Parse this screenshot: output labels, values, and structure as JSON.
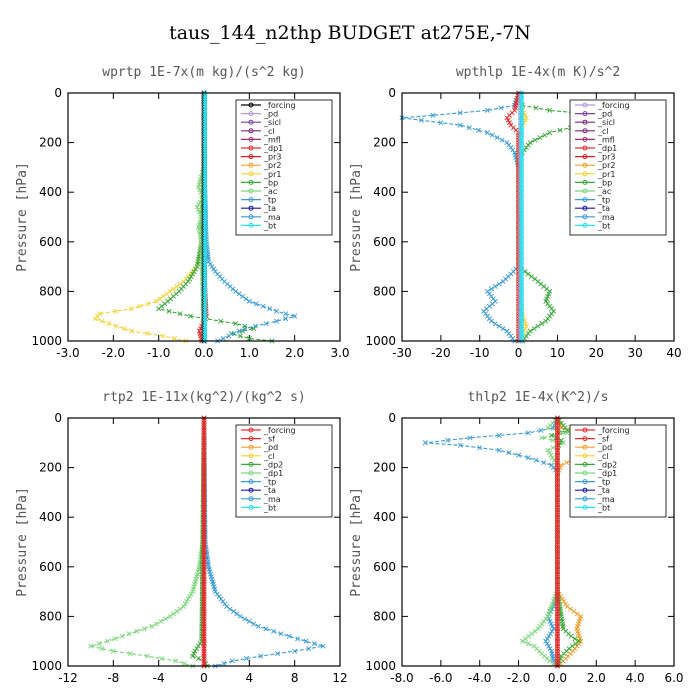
{
  "figure_title": "taus_144_n2thp  BUDGET at275E,-7N",
  "chart_data": [
    {
      "type": "line",
      "title": "wprtp  1E-7x(m kg)/(s^2 kg)",
      "ylabel": "Pressure [hPa]",
      "xlim": [
        -3.0,
        3.0
      ],
      "ylim": [
        0,
        1000
      ],
      "y_inverted": true,
      "xticks": [
        "-3.0",
        "-2.0",
        "-1.0",
        "0.0",
        "1.0",
        "2.0",
        "3.0"
      ],
      "yticks": [
        "0",
        "200",
        "400",
        "600",
        "800",
        "1000"
      ],
      "legend": [
        "_forcing",
        "_pd",
        "_sicl",
        "_cl",
        "_mfl",
        "_dp1",
        "_pr3",
        "_pr2",
        "_pr1",
        "_bp",
        "_ac",
        "_tp",
        "_ta",
        "_ma",
        "_bt"
      ],
      "legend_position": "top-right",
      "colors": {
        "_forcing": "#000000",
        "_pd": "#b59ad6",
        "_sicl": "#7b3fa0",
        "_cl": "#7a2a7a",
        "_mfl": "#a0306a",
        "_dp1": "#e03030",
        "_pr3": "#d02020",
        "_pr2": "#f0a030",
        "_pr1": "#f2d23a",
        "_bp": "#3aa83a",
        "_ac": "#7cd67c",
        "_tp": "#3a9bd6",
        "_ta": "#1a1aa0",
        "_ma": "#3a9bd6",
        "_bt": "#2ee0f0"
      },
      "series": [
        {
          "name": "_pr1",
          "y": [
            0,
            300,
            600,
            700,
            760,
            800,
            840,
            870,
            890,
            910,
            930,
            960,
            980,
            1000
          ],
          "x": [
            0,
            -0.01,
            -0.05,
            -0.15,
            -0.45,
            -0.75,
            -1.05,
            -1.6,
            -2.3,
            -2.4,
            -2.1,
            -1.6,
            -0.9,
            -0.4
          ]
        },
        {
          "name": "_bp",
          "y": [
            0,
            300,
            600,
            700,
            760,
            800,
            840,
            870,
            900,
            930,
            950,
            970,
            990,
            1000
          ],
          "x": [
            0,
            0.01,
            -0.05,
            -0.15,
            -0.35,
            -0.55,
            -0.8,
            -1.0,
            -0.3,
            0.7,
            1.1,
            0.6,
            1.0,
            1.5
          ]
        },
        {
          "name": "_tp",
          "y": [
            0,
            300,
            600,
            680,
            720,
            760,
            800,
            840,
            880,
            900,
            920,
            950,
            980,
            1000
          ],
          "x": [
            0,
            0.01,
            0.05,
            0.1,
            0.25,
            0.45,
            0.7,
            1.0,
            1.6,
            2.0,
            1.6,
            0.9,
            0.55,
            0.3
          ]
        },
        {
          "name": "_ac",
          "y": [
            0,
            300,
            380,
            420,
            460,
            500,
            540,
            600,
            1000
          ],
          "x": [
            0,
            0,
            -0.12,
            -0.02,
            -0.15,
            -0.05,
            -0.12,
            -0.05,
            0
          ]
        },
        {
          "name": "_dp1",
          "y": [
            0,
            700,
            900,
            960,
            1000
          ],
          "x": [
            0,
            0,
            0.05,
            -0.1,
            -0.05
          ]
        },
        {
          "name": "_forcing",
          "y": [
            0,
            1000
          ],
          "x": [
            0,
            0
          ]
        },
        {
          "name": "_bt",
          "y": [
            0,
            1000
          ],
          "x": [
            0.02,
            0.02
          ]
        }
      ]
    },
    {
      "type": "line",
      "title": "wpthlp  1E-4x(m K)/s^2",
      "ylabel": "Pressure [hPa]",
      "xlim": [
        -30,
        40
      ],
      "ylim": [
        0,
        1000
      ],
      "y_inverted": true,
      "xticks": [
        "-30",
        "-20",
        "-10",
        "0",
        "10",
        "20",
        "30",
        "40"
      ],
      "yticks": [
        "0",
        "200",
        "400",
        "600",
        "800",
        "1000"
      ],
      "legend": [
        "_forcing",
        "_pd",
        "_sicl",
        "_cl",
        "_mfl",
        "_dp1",
        "_pr3",
        "_pr2",
        "_pr1",
        "_bp",
        "_ac",
        "_tp",
        "_ta",
        "_ma",
        "_bt"
      ],
      "legend_position": "top-right",
      "colors": {
        "_forcing": "#b59ad6",
        "_pd": "#7b3fa0",
        "_sicl": "#7a2a7a",
        "_cl": "#7a2a7a",
        "_mfl": "#a0306a",
        "_dp1": "#e03030",
        "_pr3": "#d02020",
        "_pr2": "#f0a030",
        "_pr1": "#f2d23a",
        "_bp": "#3aa83a",
        "_ac": "#7cd67c",
        "_tp": "#3a9bd6",
        "_ta": "#1a1aa0",
        "_ma": "#3a9bd6",
        "_bt": "#2ee0f0"
      },
      "series": [
        {
          "name": "_tp",
          "y": [
            0,
            50,
            70,
            90,
            100,
            110,
            130,
            160,
            200,
            240,
            300,
            700,
            760,
            800,
            840,
            880,
            920,
            960,
            1000
          ],
          "x": [
            0,
            -1,
            -8,
            -22,
            -30,
            -25,
            -15,
            -8,
            -3,
            -1,
            0,
            0,
            -4,
            -8,
            -6,
            -9,
            -7,
            -3,
            -1
          ]
        },
        {
          "name": "_bp",
          "y": [
            0,
            50,
            70,
            90,
            100,
            110,
            130,
            160,
            200,
            240,
            300,
            700,
            760,
            800,
            840,
            880,
            920,
            960,
            1000
          ],
          "x": [
            0,
            1,
            8,
            22,
            32,
            26,
            16,
            8,
            3,
            1,
            0,
            0,
            5,
            8,
            7,
            9,
            7,
            3,
            1
          ]
        },
        {
          "name": "_pr1",
          "y": [
            0,
            70,
            100,
            130,
            160,
            700,
            900,
            940,
            980,
            1000
          ],
          "x": [
            0,
            1,
            2,
            1,
            0,
            0,
            1,
            2,
            0.5,
            0
          ]
        },
        {
          "name": "_dp1",
          "y": [
            0,
            70,
            100,
            130,
            160,
            700,
            1000
          ],
          "x": [
            0,
            -1,
            -3,
            -2,
            0,
            0,
            0
          ]
        },
        {
          "name": "_forcing",
          "y": [
            0,
            1000
          ],
          "x": [
            0.5,
            0.5
          ]
        },
        {
          "name": "_bt",
          "y": [
            0,
            1000
          ],
          "x": [
            0.8,
            0.8
          ]
        }
      ]
    },
    {
      "type": "line",
      "title": "rtp2  1E-11x(kg^2)/(kg^2 s)",
      "ylabel": "Pressure [hPa]",
      "xlim": [
        -12,
        12
      ],
      "ylim": [
        0,
        1000
      ],
      "y_inverted": true,
      "xticks": [
        "-12",
        "-8",
        "-4",
        "0",
        "4",
        "8",
        "12"
      ],
      "yticks": [
        "0",
        "200",
        "400",
        "600",
        "800",
        "1000"
      ],
      "legend": [
        "_forcing",
        "_sf",
        "_pd",
        "_cl",
        "_dp2",
        "_dp1",
        "_tp",
        "_ta",
        "_ma",
        "_bt"
      ],
      "legend_position": "top-right",
      "colors": {
        "_forcing": "#e03030",
        "_sf": "#e03030",
        "_pd": "#f0a030",
        "_cl": "#f2d23a",
        "_dp2": "#3aa83a",
        "_dp1": "#7cd67c",
        "_tp": "#3a9bd6",
        "_ta": "#1a1aa0",
        "_ma": "#3a9bd6",
        "_bt": "#2ee0f0"
      },
      "series": [
        {
          "name": "_dp1",
          "y": [
            0,
            500,
            600,
            700,
            760,
            800,
            840,
            870,
            900,
            920,
            940,
            960,
            980,
            1000
          ],
          "x": [
            0,
            -0.1,
            -0.4,
            -1.0,
            -1.8,
            -3.0,
            -4.6,
            -6.6,
            -8.5,
            -10.0,
            -8.0,
            -5.0,
            -2.5,
            -1.0
          ]
        },
        {
          "name": "_tp",
          "y": [
            0,
            500,
            600,
            700,
            760,
            800,
            840,
            870,
            900,
            920,
            940,
            960,
            980,
            1000
          ],
          "x": [
            0,
            0.1,
            0.4,
            1.0,
            2.0,
            3.2,
            4.8,
            6.8,
            9.0,
            10.5,
            8.0,
            5.0,
            2.5,
            1.0
          ]
        },
        {
          "name": "_dp2",
          "y": [
            0,
            900,
            940,
            960,
            980,
            1000
          ],
          "x": [
            0,
            -0.2,
            -0.8,
            -1.0,
            0,
            0.3
          ]
        },
        {
          "name": "_forcing",
          "y": [
            0,
            1000
          ],
          "x": [
            0,
            0
          ]
        },
        {
          "name": "_sf",
          "y": [
            0,
            1000
          ],
          "x": [
            0,
            0
          ]
        }
      ]
    },
    {
      "type": "line",
      "title": "thlp2  1E-4x(K^2)/s",
      "ylabel": "Pressure [hPa]",
      "xlim": [
        -8.0,
        6.0
      ],
      "ylim": [
        0,
        1000
      ],
      "y_inverted": true,
      "xticks": [
        "-8.0",
        "-6.0",
        "-4.0",
        "-2.0",
        "0.0",
        "2.0",
        "4.0",
        "6.0"
      ],
      "yticks": [
        "0",
        "200",
        "400",
        "600",
        "800",
        "1000"
      ],
      "legend": [
        "_forcing",
        "_sf",
        "_pd",
        "_cl",
        "_dp2",
        "_dp1",
        "_tp",
        "_ta",
        "_ma",
        "_bt"
      ],
      "legend_position": "top-right",
      "colors": {
        "_forcing": "#e03030",
        "_sf": "#e03030",
        "_pd": "#f0a030",
        "_cl": "#f2d23a",
        "_dp2": "#3aa83a",
        "_dp1": "#7cd67c",
        "_tp": "#3a9bd6",
        "_ta": "#1a1aa0",
        "_ma": "#3a9bd6",
        "_bt": "#2ee0f0"
      },
      "series": [
        {
          "name": "_tp",
          "y": [
            0,
            40,
            60,
            80,
            100,
            110,
            130,
            160,
            190,
            220,
            300,
            700,
            760,
            800,
            850,
            900,
            940,
            980,
            1000
          ],
          "x": [
            0,
            -0.2,
            -1.5,
            -4.5,
            -6.8,
            -5.0,
            -3.0,
            -1.5,
            -0.3,
            0,
            0,
            0,
            -0.2,
            -0.5,
            -0.2,
            -0.6,
            -0.3,
            -0.2,
            0
          ]
        },
        {
          "name": "_pd",
          "y": [
            0,
            40,
            60,
            80,
            100,
            110,
            130,
            160,
            190,
            220,
            300,
            700,
            760,
            800,
            850,
            900,
            940,
            980,
            1000
          ],
          "x": [
            0,
            0.2,
            1.0,
            3.0,
            4.5,
            3.4,
            2.0,
            1.0,
            0.2,
            0,
            0,
            0,
            0.5,
            1.2,
            1.0,
            1.2,
            0.8,
            0.3,
            0
          ]
        },
        {
          "name": "_dp1",
          "y": [
            0,
            40,
            60,
            80,
            100,
            130,
            190,
            700,
            800,
            850,
            900,
            920,
            950,
            980,
            1000
          ],
          "x": [
            0,
            -0.5,
            0.5,
            -0.8,
            0.3,
            -0.5,
            0,
            0,
            -0.5,
            -1.0,
            -1.8,
            -1.2,
            -0.8,
            -0.4,
            0
          ]
        },
        {
          "name": "_dp2",
          "y": [
            0,
            50,
            70,
            90,
            120,
            700,
            850,
            880,
            900,
            930,
            960,
            1000
          ],
          "x": [
            0,
            0.5,
            -0.3,
            0.2,
            0,
            0,
            0.3,
            0.7,
            1.1,
            0.6,
            0.2,
            0
          ]
        },
        {
          "name": "_forcing",
          "y": [
            0,
            1000
          ],
          "x": [
            0,
            0
          ]
        },
        {
          "name": "_sf",
          "y": [
            0,
            1000
          ],
          "x": [
            0,
            0
          ]
        }
      ]
    }
  ]
}
